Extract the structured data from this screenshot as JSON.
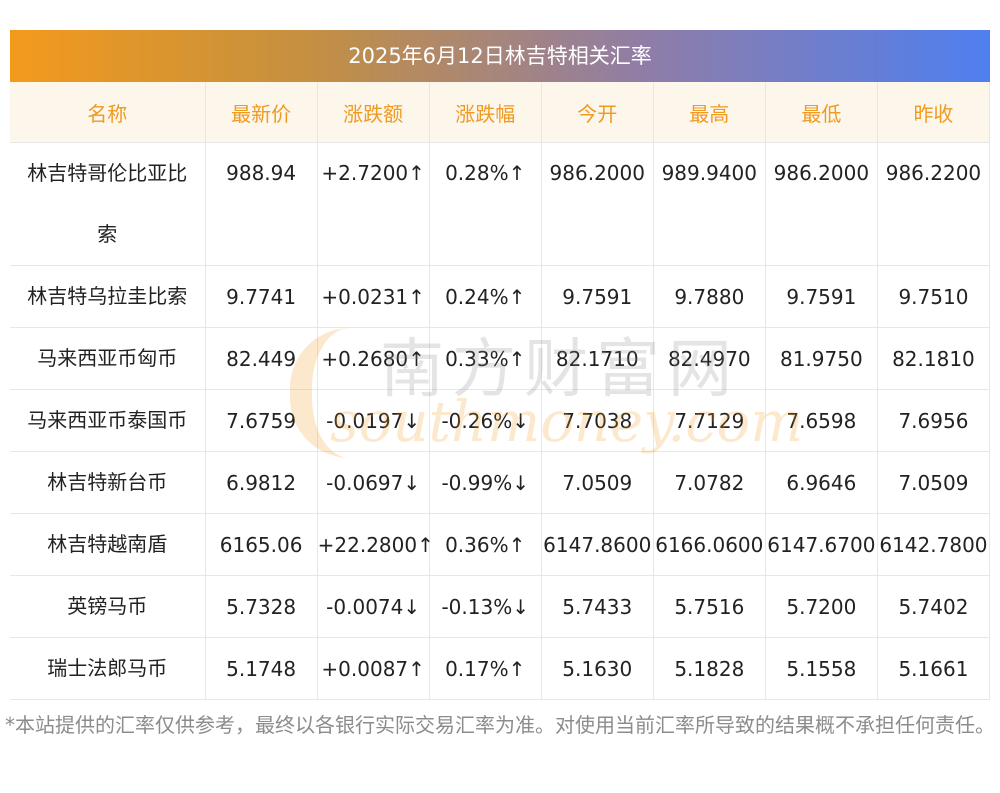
{
  "title": "2025年6月12日林吉特相关汇率",
  "headers": [
    "名称",
    "最新价",
    "涨跌额",
    "涨跌幅",
    "今开",
    "最高",
    "最低",
    "昨收"
  ],
  "rows": [
    {
      "name": "林吉特哥伦比亚比索",
      "latest": "988.94",
      "change": "+2.7200↑",
      "pct": "0.28%↑",
      "open": "986.2000",
      "high": "989.9400",
      "low": "986.2000",
      "prev": "986.2200",
      "direction": "up"
    },
    {
      "name": "林吉特乌拉圭比索",
      "latest": "9.7741",
      "change": "+0.0231↑",
      "pct": "0.24%↑",
      "open": "9.7591",
      "high": "9.7880",
      "low": "9.7591",
      "prev": "9.7510",
      "direction": "up"
    },
    {
      "name": "马来西亚币匈币",
      "latest": "82.449",
      "change": "+0.2680↑",
      "pct": "0.33%↑",
      "open": "82.1710",
      "high": "82.4970",
      "low": "81.9750",
      "prev": "82.1810",
      "direction": "up"
    },
    {
      "name": "马来西亚币泰国币",
      "latest": "7.6759",
      "change": "-0.0197↓",
      "pct": "-0.26%↓",
      "open": "7.7038",
      "high": "7.7129",
      "low": "7.6598",
      "prev": "7.6956",
      "direction": "down"
    },
    {
      "name": "林吉特新台币",
      "latest": "6.9812",
      "change": "-0.0697↓",
      "pct": "-0.99%↓",
      "open": "7.0509",
      "high": "7.0782",
      "low": "6.9646",
      "prev": "7.0509",
      "direction": "down"
    },
    {
      "name": "林吉特越南盾",
      "latest": "6165.06",
      "change": "+22.2800↑",
      "pct": "0.36%↑",
      "open": "6147.8600",
      "high": "6166.0600",
      "low": "6147.6700",
      "prev": "6142.7800",
      "direction": "up"
    },
    {
      "name": "英镑马币",
      "latest": "5.7328",
      "change": "-0.0074↓",
      "pct": "-0.13%↓",
      "open": "5.7433",
      "high": "5.7516",
      "low": "5.7200",
      "prev": "5.7402",
      "direction": "down"
    },
    {
      "name": "瑞士法郎马币",
      "latest": "5.1748",
      "change": "+0.0087↑",
      "pct": "0.17%↑",
      "open": "5.1630",
      "high": "5.1828",
      "low": "5.1558",
      "prev": "5.1661",
      "direction": "up"
    }
  ],
  "watermark": {
    "cn": "南方财富网",
    "en": "southmoney.com"
  },
  "footnote": "*本站提供的汇率仅供参考，最终以各银行实际交易汇率为准。对使用当前汇率所导致的结果概不承担任何责任。",
  "colors": {
    "up": "#ec2a2a",
    "down": "#1f8c2a",
    "header_text": "#f09a22",
    "header_bg": "#fdf6ea"
  }
}
